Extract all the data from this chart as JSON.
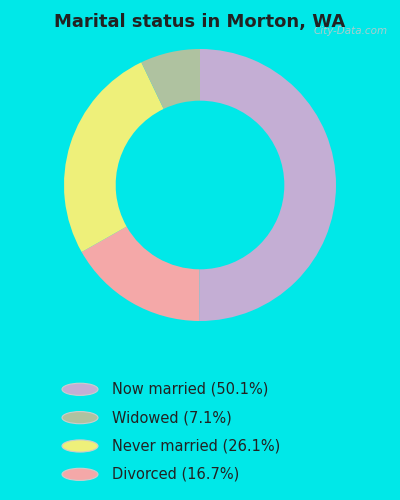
{
  "title": "Marital status in Morton, WA",
  "categories": [
    "Now married",
    "Widowed",
    "Never married",
    "Divorced"
  ],
  "values": [
    50.1,
    7.1,
    26.1,
    16.7
  ],
  "colors": [
    "#c4aed4",
    "#afc2a0",
    "#eef07a",
    "#f4a8a8"
  ],
  "legend_labels": [
    "Now married (50.1%)",
    "Widowed (7.1%)",
    "Never married (26.1%)",
    "Divorced (16.7%)"
  ],
  "outer_bg": "#00e8e8",
  "chart_bg_top": "#e8f5ee",
  "chart_bg_bottom": "#d0eadc",
  "title_fontsize": 13,
  "legend_fontsize": 10.5,
  "watermark": "City-Data.com",
  "donut_width": 0.38,
  "plot_order_values": [
    50.1,
    16.7,
    26.1,
    7.1
  ],
  "plot_order_colors": [
    "#c4aed4",
    "#f4a8a8",
    "#eef07a",
    "#afc2a0"
  ]
}
